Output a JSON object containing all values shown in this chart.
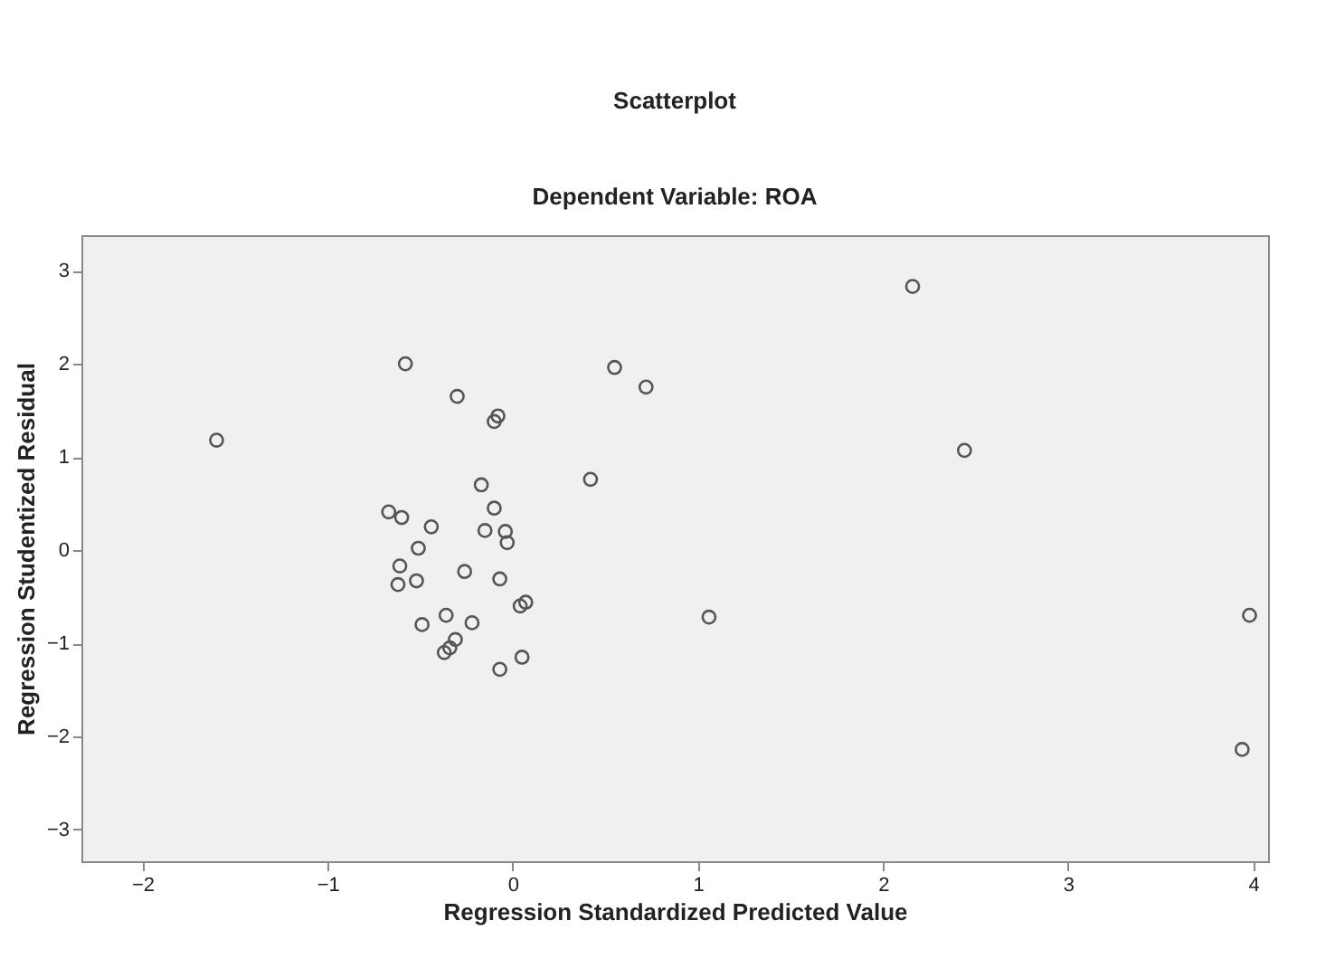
{
  "chart_data": {
    "type": "scatter",
    "title": "Scatterplot",
    "subtitle": "Dependent Variable: ROA",
    "xlabel": "Regression Standardized Predicted Value",
    "ylabel": "Regression Studentized Residual",
    "x": [
      -1.6,
      -0.58,
      -0.3,
      -0.1,
      -0.08,
      0.55,
      0.72,
      0.42,
      2.16,
      2.44,
      1.06,
      3.98,
      3.94,
      -0.17,
      -0.67,
      -0.44,
      -0.51,
      -0.15,
      -0.1,
      -0.03,
      -0.61,
      -0.26,
      -0.07,
      -0.62,
      0.07,
      -0.49,
      -0.34,
      -0.36,
      -0.07,
      0.05,
      -0.6,
      -0.52,
      -0.22,
      -0.31,
      -0.37,
      -0.04,
      0.04
    ],
    "values": [
      1.18,
      2.0,
      1.65,
      1.38,
      1.44,
      1.96,
      1.75,
      0.76,
      2.83,
      1.07,
      -0.72,
      -0.7,
      -2.14,
      0.7,
      0.41,
      0.25,
      0.02,
      0.21,
      0.45,
      0.08,
      -0.17,
      -0.23,
      -0.31,
      -0.37,
      -0.56,
      -0.8,
      -1.05,
      -0.7,
      -1.28,
      -1.15,
      0.35,
      -0.33,
      -0.78,
      -0.96,
      -1.1,
      0.2,
      -0.6
    ],
    "color": "#555555",
    "marker": "circle",
    "grid": false,
    "xlim": [
      -2.33,
      4.08
    ],
    "xticks": [
      -2,
      -1,
      0,
      1,
      2,
      3,
      4
    ],
    "ylim": [
      -3.34,
      3.38
    ],
    "yticks": [
      -3,
      -2,
      -1,
      0,
      1,
      2,
      3
    ]
  }
}
